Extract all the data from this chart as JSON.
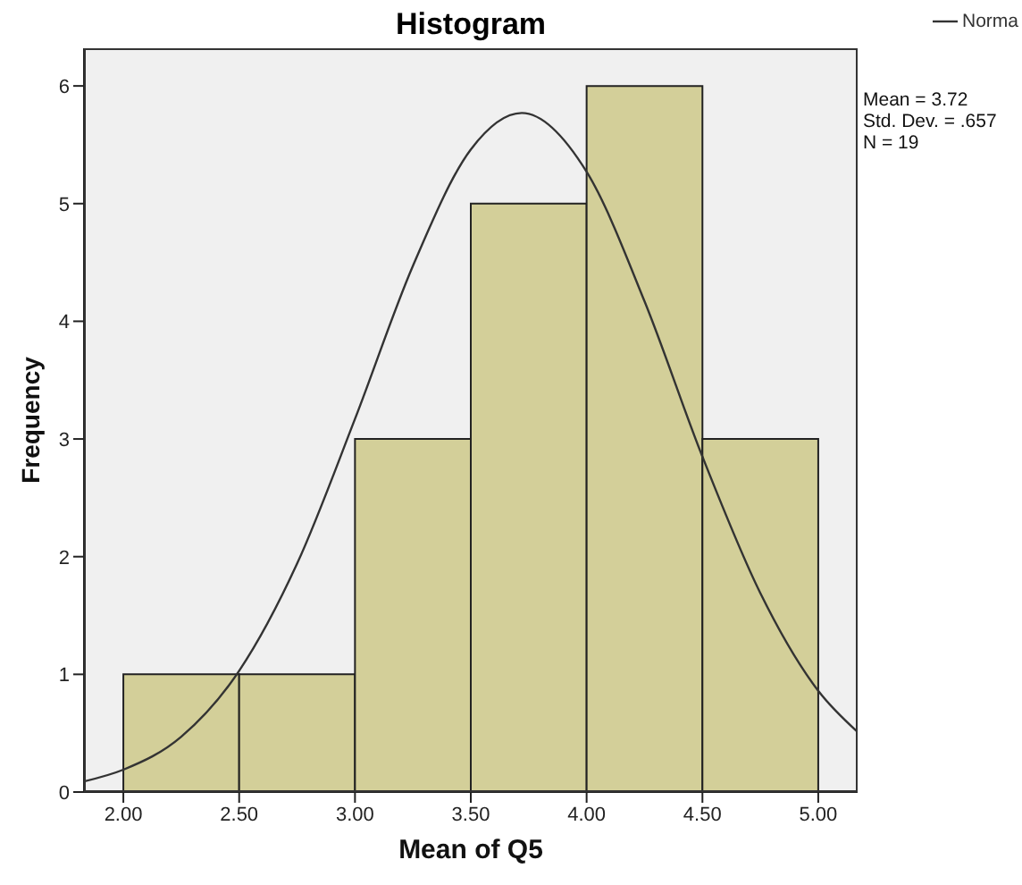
{
  "chart_data": {
    "type": "histogram",
    "title": "Histogram",
    "xlabel": "Mean of Q5",
    "ylabel": "Frequency",
    "bins": [
      2.0,
      2.5,
      3.0,
      3.5,
      4.0,
      4.5,
      5.0
    ],
    "values": [
      1,
      1,
      3,
      5,
      6,
      3
    ],
    "color": "#d3cf99",
    "series": [
      {
        "type": "line",
        "name": "Norma",
        "color": "#333333",
        "x": [
          1.83,
          2.0,
          2.25,
          2.5,
          2.75,
          3.0,
          3.25,
          3.5,
          3.72,
          4.0,
          4.25,
          4.5,
          4.75,
          5.0,
          5.17
        ],
        "values": [
          0.09,
          0.19,
          0.47,
          1.03,
          1.94,
          3.17,
          4.47,
          5.46,
          5.77,
          5.27,
          4.17,
          2.85,
          1.69,
          0.86,
          0.51
        ]
      }
    ],
    "xlim": [
      1.83,
      5.17
    ],
    "xticks": [
      {
        "value": 2.0,
        "label": "2.00"
      },
      {
        "value": 2.5,
        "label": "2.50"
      },
      {
        "value": 3.0,
        "label": "3.00"
      },
      {
        "value": 3.5,
        "label": "3.50"
      },
      {
        "value": 4.0,
        "label": "4.00"
      },
      {
        "value": 4.5,
        "label": "4.50"
      },
      {
        "value": 5.0,
        "label": "5.00"
      }
    ],
    "ylim": [
      0,
      6.32
    ],
    "yticks": [
      0,
      1,
      2,
      3,
      4,
      5,
      6
    ],
    "grid": false,
    "legend": "top right",
    "marker": "none",
    "annotations": [
      "Mean = 3.72",
      "Std. Dev. = .657",
      "N = 19"
    ]
  }
}
